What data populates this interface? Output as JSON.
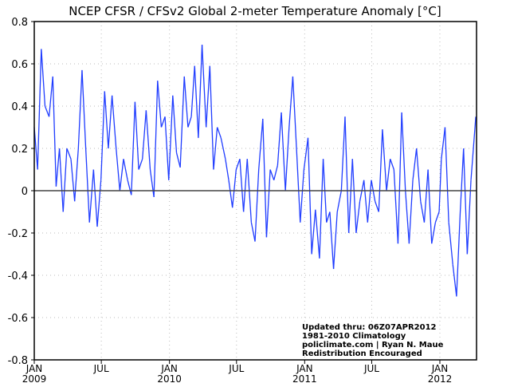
{
  "chart_data": {
    "type": "line",
    "title": "NCEP CFSR / CFSv2 Global 2-meter Temperature Anomaly [°C]",
    "xlabel": "",
    "ylabel": "",
    "ylim": [
      -0.8,
      0.8
    ],
    "xlim": [
      "2009-01-01",
      "2012-04-09"
    ],
    "y_ticks": [
      "0.8",
      "0.6",
      "0.4",
      "0.2",
      "0",
      "-0.2",
      "-0.4",
      "-0.6",
      "-0.8"
    ],
    "x_ticks": [
      {
        "date": "2009-01-01",
        "month": "JAN",
        "year": "2009"
      },
      {
        "date": "2009-07-01",
        "month": "JUL",
        "year": ""
      },
      {
        "date": "2010-01-01",
        "month": "JAN",
        "year": "2010"
      },
      {
        "date": "2010-07-01",
        "month": "JUL",
        "year": ""
      },
      {
        "date": "2011-01-01",
        "month": "JAN",
        "year": "2011"
      },
      {
        "date": "2011-07-01",
        "month": "JUL",
        "year": ""
      },
      {
        "date": "2012-01-01",
        "month": "JAN",
        "year": "2012"
      }
    ],
    "grid": true,
    "zero_line": true,
    "series_color": "#1f3cff",
    "series": [
      {
        "points": [
          [
            "2009-01-01",
            0.3
          ],
          [
            "2009-01-10",
            0.1
          ],
          [
            "2009-01-20",
            0.67
          ],
          [
            "2009-01-30",
            0.4
          ],
          [
            "2009-02-10",
            0.35
          ],
          [
            "2009-02-20",
            0.54
          ],
          [
            "2009-03-01",
            0.02
          ],
          [
            "2009-03-10",
            0.2
          ],
          [
            "2009-03-20",
            -0.1
          ],
          [
            "2009-03-30",
            0.2
          ],
          [
            "2009-04-10",
            0.15
          ],
          [
            "2009-04-20",
            -0.05
          ],
          [
            "2009-04-30",
            0.2
          ],
          [
            "2009-05-10",
            0.57
          ],
          [
            "2009-05-20",
            0.2
          ],
          [
            "2009-05-30",
            -0.15
          ],
          [
            "2009-06-10",
            0.1
          ],
          [
            "2009-06-20",
            -0.17
          ],
          [
            "2009-06-30",
            0.05
          ],
          [
            "2009-07-10",
            0.47
          ],
          [
            "2009-07-20",
            0.2
          ],
          [
            "2009-07-30",
            0.45
          ],
          [
            "2009-08-10",
            0.2
          ],
          [
            "2009-08-20",
            0.0
          ],
          [
            "2009-08-30",
            0.15
          ],
          [
            "2009-09-10",
            0.05
          ],
          [
            "2009-09-20",
            -0.02
          ],
          [
            "2009-09-30",
            0.42
          ],
          [
            "2009-10-10",
            0.1
          ],
          [
            "2009-10-20",
            0.15
          ],
          [
            "2009-10-30",
            0.38
          ],
          [
            "2009-11-10",
            0.1
          ],
          [
            "2009-11-20",
            -0.03
          ],
          [
            "2009-11-30",
            0.52
          ],
          [
            "2009-12-10",
            0.3
          ],
          [
            "2009-12-20",
            0.35
          ],
          [
            "2009-12-30",
            0.05
          ],
          [
            "2010-01-10",
            0.45
          ],
          [
            "2010-01-20",
            0.18
          ],
          [
            "2010-01-30",
            0.11
          ],
          [
            "2010-02-10",
            0.54
          ],
          [
            "2010-02-20",
            0.3
          ],
          [
            "2010-03-01",
            0.35
          ],
          [
            "2010-03-10",
            0.59
          ],
          [
            "2010-03-20",
            0.25
          ],
          [
            "2010-03-30",
            0.69
          ],
          [
            "2010-04-10",
            0.3
          ],
          [
            "2010-04-20",
            0.59
          ],
          [
            "2010-04-30",
            0.1
          ],
          [
            "2010-05-10",
            0.3
          ],
          [
            "2010-05-20",
            0.25
          ],
          [
            "2010-06-01",
            0.15
          ],
          [
            "2010-06-10",
            0.05
          ],
          [
            "2010-06-20",
            -0.08
          ],
          [
            "2010-06-30",
            0.1
          ],
          [
            "2010-07-10",
            0.15
          ],
          [
            "2010-07-20",
            -0.1
          ],
          [
            "2010-07-30",
            0.15
          ],
          [
            "2010-08-10",
            -0.15
          ],
          [
            "2010-08-20",
            -0.24
          ],
          [
            "2010-08-30",
            0.1
          ],
          [
            "2010-09-10",
            0.34
          ],
          [
            "2010-09-20",
            -0.22
          ],
          [
            "2010-09-30",
            0.1
          ],
          [
            "2010-10-10",
            0.05
          ],
          [
            "2010-10-20",
            0.12
          ],
          [
            "2010-10-30",
            0.37
          ],
          [
            "2010-11-10",
            0.0
          ],
          [
            "2010-11-20",
            0.3
          ],
          [
            "2010-11-30",
            0.54
          ],
          [
            "2010-12-10",
            0.2
          ],
          [
            "2010-12-20",
            -0.15
          ],
          [
            "2010-12-30",
            0.1
          ],
          [
            "2011-01-10",
            0.25
          ],
          [
            "2011-01-20",
            -0.3
          ],
          [
            "2011-01-30",
            -0.09
          ],
          [
            "2011-02-10",
            -0.32
          ],
          [
            "2011-02-20",
            0.15
          ],
          [
            "2011-03-01",
            -0.15
          ],
          [
            "2011-03-10",
            -0.1
          ],
          [
            "2011-03-20",
            -0.37
          ],
          [
            "2011-03-30",
            -0.1
          ],
          [
            "2011-04-10",
            0.0
          ],
          [
            "2011-04-20",
            0.35
          ],
          [
            "2011-04-30",
            -0.2
          ],
          [
            "2011-05-10",
            0.15
          ],
          [
            "2011-05-20",
            -0.2
          ],
          [
            "2011-05-30",
            -0.05
          ],
          [
            "2011-06-10",
            0.05
          ],
          [
            "2011-06-20",
            -0.15
          ],
          [
            "2011-06-30",
            0.05
          ],
          [
            "2011-07-10",
            -0.05
          ],
          [
            "2011-07-20",
            -0.1
          ],
          [
            "2011-07-30",
            0.29
          ],
          [
            "2011-08-10",
            0.0
          ],
          [
            "2011-08-20",
            0.15
          ],
          [
            "2011-08-30",
            0.1
          ],
          [
            "2011-09-10",
            -0.25
          ],
          [
            "2011-09-20",
            0.37
          ],
          [
            "2011-09-30",
            0.0
          ],
          [
            "2011-10-10",
            -0.25
          ],
          [
            "2011-10-20",
            0.05
          ],
          [
            "2011-10-30",
            0.2
          ],
          [
            "2011-11-10",
            -0.05
          ],
          [
            "2011-11-20",
            -0.15
          ],
          [
            "2011-11-30",
            0.1
          ],
          [
            "2011-12-10",
            -0.25
          ],
          [
            "2011-12-20",
            -0.15
          ],
          [
            "2011-12-30",
            -0.1
          ],
          [
            "2012-01-05",
            0.15
          ],
          [
            "2012-01-15",
            0.3
          ],
          [
            "2012-01-25",
            -0.15
          ],
          [
            "2012-02-05",
            -0.35
          ],
          [
            "2012-02-15",
            -0.5
          ],
          [
            "2012-02-25",
            -0.1
          ],
          [
            "2012-03-05",
            0.2
          ],
          [
            "2012-03-15",
            -0.3
          ],
          [
            "2012-03-25",
            0.05
          ],
          [
            "2012-04-07",
            0.35
          ]
        ]
      }
    ],
    "annotations": {
      "updated": "Updated thru: 06Z07APR2012",
      "climatology": "1981-2010 Climatology",
      "credit": "policlimate.com | Ryan N. Maue",
      "redistribution": "Redistribution Encouraged",
      "redistribution_color": "#2040ff"
    }
  }
}
